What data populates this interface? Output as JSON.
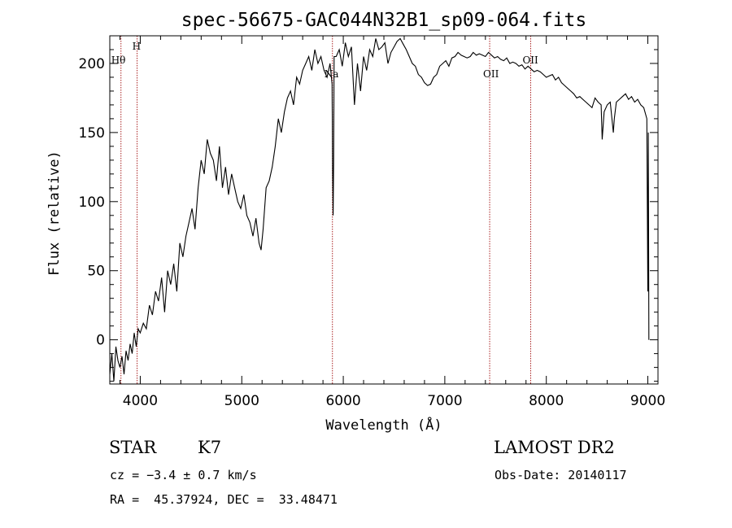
{
  "chart_data": {
    "type": "line",
    "title": "spec-56675-GAC044N32B1_sp09-064.fits",
    "xlabel": "Wavelength (Å)",
    "ylabel": "Flux (relative)",
    "xlim": [
      3700,
      9100
    ],
    "ylim": [
      -32,
      220
    ],
    "xticks": [
      4000,
      5000,
      6000,
      7000,
      8000,
      9000
    ],
    "yticks": [
      0,
      50,
      100,
      150,
      200
    ],
    "grid": false,
    "series": [
      {
        "x": [
          3700,
          3720,
          3740,
          3760,
          3780,
          3800,
          3820,
          3840,
          3860,
          3880,
          3900,
          3920,
          3940,
          3960,
          3980,
          4000,
          4030,
          4060,
          4090,
          4120,
          4150,
          4180,
          4210,
          4240,
          4270,
          4300,
          4330,
          4360,
          4390,
          4420,
          4450,
          4480,
          4510,
          4540,
          4570,
          4600,
          4630,
          4660,
          4690,
          4720,
          4750,
          4780,
          4810,
          4840,
          4870,
          4900,
          4930,
          4960,
          4990,
          5020,
          5050,
          5080,
          5110,
          5140,
          5170,
          5190,
          5210,
          5240,
          5270,
          5300,
          5330,
          5360,
          5390,
          5420,
          5450,
          5480,
          5510,
          5540,
          5570,
          5600,
          5630,
          5660,
          5690,
          5720,
          5750,
          5780,
          5810,
          5840,
          5870,
          5890,
          5895,
          5900,
          5905,
          5910,
          5930,
          5960,
          5990,
          6020,
          6050,
          6080,
          6110,
          6140,
          6170,
          6200,
          6230,
          6260,
          6290,
          6320,
          6350,
          6380,
          6410,
          6440,
          6470,
          6500,
          6530,
          6560,
          6590,
          6620,
          6650,
          6680,
          6710,
          6740,
          6770,
          6800,
          6830,
          6860,
          6890,
          6920,
          6950,
          6980,
          7010,
          7040,
          7070,
          7100,
          7130,
          7160,
          7190,
          7220,
          7250,
          7280,
          7310,
          7340,
          7370,
          7400,
          7430,
          7460,
          7490,
          7520,
          7550,
          7580,
          7610,
          7640,
          7670,
          7700,
          7730,
          7760,
          7790,
          7820,
          7850,
          7880,
          7910,
          7940,
          7970,
          8000,
          8030,
          8060,
          8090,
          8120,
          8150,
          8180,
          8210,
          8240,
          8270,
          8300,
          8330,
          8360,
          8390,
          8420,
          8450,
          8480,
          8510,
          8540,
          8550,
          8570,
          8600,
          8630,
          8660,
          8670,
          8690,
          8720,
          8750,
          8780,
          8810,
          8840,
          8870,
          8900,
          8930,
          8960,
          8990,
          9000,
          9005,
          9010
        ],
        "y": [
          -25,
          -10,
          -30,
          -5,
          -15,
          -20,
          -12,
          -25,
          -8,
          -15,
          -3,
          -10,
          5,
          -5,
          8,
          5,
          12,
          8,
          25,
          18,
          35,
          28,
          45,
          20,
          50,
          40,
          55,
          35,
          70,
          60,
          75,
          85,
          95,
          80,
          110,
          130,
          120,
          145,
          135,
          130,
          115,
          140,
          110,
          125,
          105,
          120,
          110,
          100,
          95,
          105,
          90,
          85,
          75,
          88,
          70,
          65,
          80,
          110,
          115,
          125,
          140,
          160,
          150,
          165,
          175,
          180,
          170,
          190,
          185,
          195,
          200,
          205,
          195,
          210,
          200,
          205,
          195,
          190,
          200,
          185,
          120,
          90,
          130,
          205,
          205,
          210,
          198,
          215,
          205,
          212,
          170,
          200,
          180,
          205,
          195,
          210,
          205,
          218,
          210,
          212,
          215,
          200,
          208,
          212,
          216,
          218,
          214,
          210,
          205,
          200,
          198,
          192,
          190,
          186,
          184,
          185,
          190,
          192,
          198,
          200,
          202,
          198,
          204,
          205,
          208,
          206,
          205,
          204,
          205,
          208,
          206,
          207,
          206,
          205,
          208,
          206,
          204,
          205,
          203,
          202,
          204,
          200,
          201,
          200,
          198,
          199,
          196,
          198,
          196,
          194,
          195,
          194,
          192,
          190,
          191,
          192,
          188,
          190,
          186,
          184,
          182,
          180,
          178,
          175,
          176,
          174,
          172,
          170,
          168,
          175,
          172,
          170,
          145,
          165,
          170,
          172,
          150,
          160,
          172,
          174,
          176,
          178,
          174,
          176,
          172,
          174,
          170,
          168,
          160,
          35,
          150,
          0
        ]
      }
    ],
    "reference_lines": [
      {
        "x": 3810,
        "label": "Hθ"
      },
      {
        "x": 3969,
        "label": "H"
      },
      {
        "x": 5893,
        "label": "Na"
      },
      {
        "x": 7442,
        "label": "OII"
      },
      {
        "x": 7846,
        "label": "OII"
      }
    ]
  },
  "info": {
    "object_class": "STAR",
    "subclass": "K7",
    "survey": "LAMOST DR2",
    "redshift_line": "cz = −3.4 ± 0.7 km/s",
    "obs_date": "Obs-Date: 20140117",
    "coords": "RA =  45.37924, DEC =  33.48471"
  },
  "colors": {
    "spectrum": "#000000",
    "reference_line": "#aa2222"
  }
}
